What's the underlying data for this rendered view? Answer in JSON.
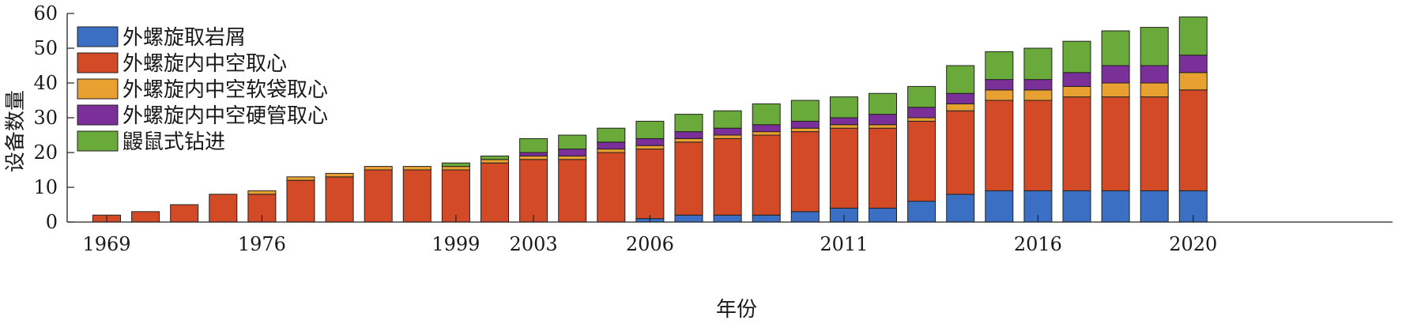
{
  "chart_data": {
    "type": "bar",
    "stacked": true,
    "xlabel": "年份",
    "ylabel": "设备数量",
    "ylim": [
      0,
      60
    ],
    "yticks": [
      0,
      10,
      20,
      30,
      40,
      50,
      60
    ],
    "x_tick_labels": [
      "1969",
      "1976",
      "1999",
      "2003",
      "2006",
      "2011",
      "2016",
      "2020"
    ],
    "x_tick_label_bar_index": [
      0,
      4,
      9,
      11,
      14,
      19,
      24,
      28
    ],
    "grid": false,
    "legend_position": "top-left",
    "series": [
      {
        "name": "外螺旋取岩屑",
        "color": "#3a6fc4",
        "values": [
          0,
          0,
          0,
          0,
          0,
          0,
          0,
          0,
          0,
          0,
          0,
          0,
          0,
          0,
          1,
          2,
          2,
          2,
          3,
          4,
          4,
          6,
          8,
          9,
          9,
          9,
          9,
          9,
          9
        ]
      },
      {
        "name": "外螺旋内中空取心",
        "color": "#d24a26",
        "values": [
          2,
          3,
          5,
          8,
          8,
          12,
          13,
          15,
          15,
          15,
          17,
          18,
          18,
          20,
          20,
          21,
          22,
          23,
          23,
          23,
          23,
          23,
          24,
          26,
          26,
          27,
          27,
          27,
          29
        ]
      },
      {
        "name": "外螺旋内中空软袋取心",
        "color": "#e8a030",
        "values": [
          0,
          0,
          0,
          0,
          1,
          1,
          1,
          1,
          1,
          1,
          1,
          1,
          1,
          1,
          1,
          1,
          1,
          1,
          1,
          1,
          1,
          1,
          2,
          3,
          3,
          3,
          4,
          4,
          5
        ]
      },
      {
        "name": "外螺旋内中空硬管取心",
        "color": "#7a2f99",
        "values": [
          0,
          0,
          0,
          0,
          0,
          0,
          0,
          0,
          0,
          0,
          0,
          1,
          2,
          2,
          2,
          2,
          2,
          2,
          2,
          2,
          3,
          3,
          3,
          3,
          3,
          4,
          5,
          5,
          5
        ]
      },
      {
        "name": "鼹鼠式钻进",
        "color": "#6aaa3a",
        "values": [
          0,
          0,
          0,
          0,
          0,
          0,
          0,
          0,
          0,
          1,
          1,
          4,
          4,
          4,
          5,
          5,
          5,
          6,
          6,
          6,
          6,
          6,
          8,
          8,
          9,
          9,
          10,
          11,
          11
        ]
      }
    ]
  }
}
